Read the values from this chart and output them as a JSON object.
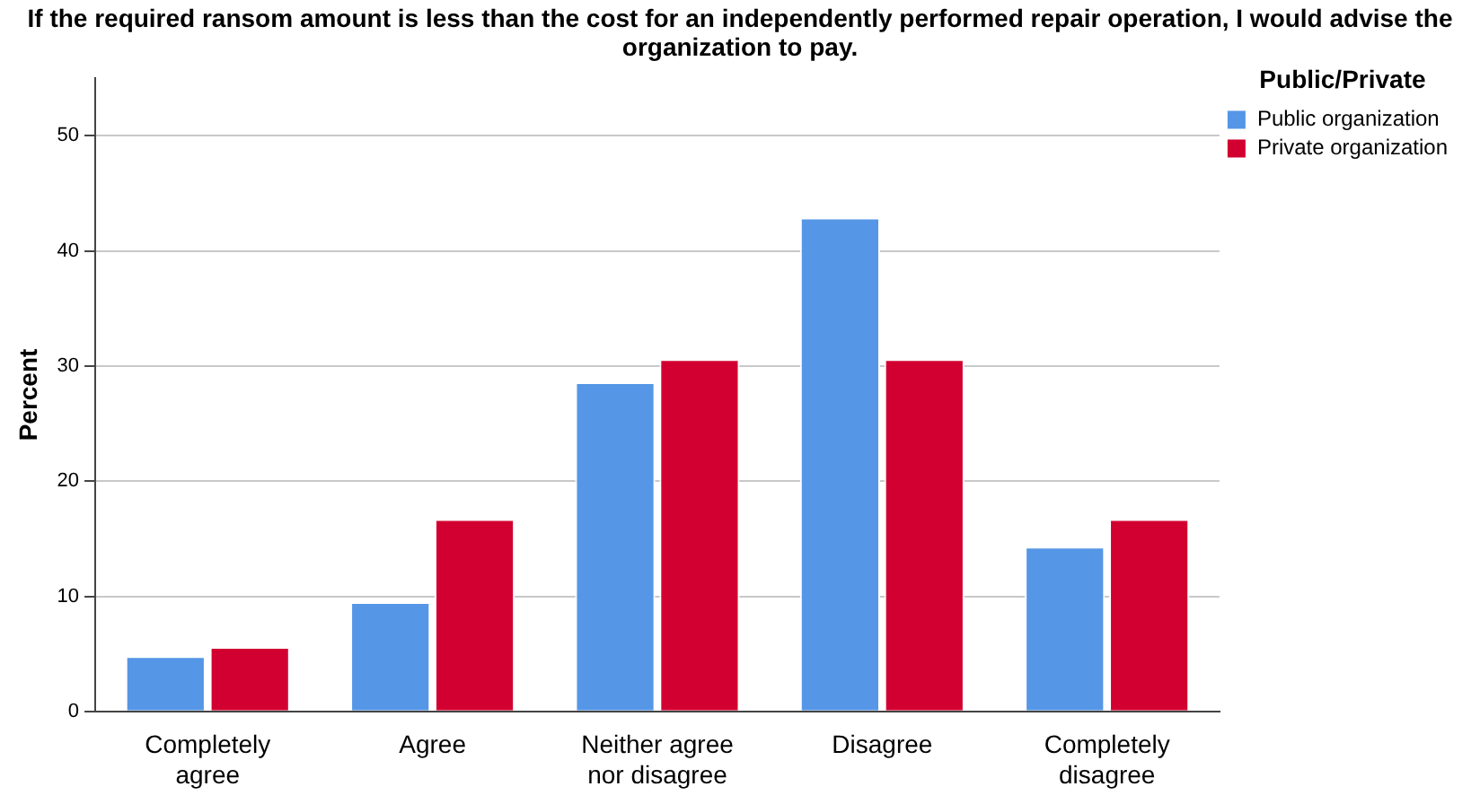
{
  "chart_data": {
    "type": "bar",
    "title": "If the required ransom amount is less than the cost for an independently performed repair operation, I would advise the organization to pay.",
    "ylabel": "Percent",
    "legend_title": "Public/Private",
    "categories": [
      "Completely agree",
      "Agree",
      "Neither agree nor disagree",
      "Disagree",
      "Completely disagree"
    ],
    "series": [
      {
        "name": "Public organization",
        "color": "#5596e6",
        "values": [
          4.8,
          9.5,
          28.6,
          42.9,
          14.3
        ]
      },
      {
        "name": "Private organization",
        "color": "#d20030",
        "values": [
          5.6,
          16.7,
          30.6,
          30.6,
          16.7
        ]
      }
    ],
    "ylim": [
      0,
      55
    ],
    "yticks": [
      0,
      10,
      20,
      30,
      40,
      50
    ],
    "grid": "y",
    "legend": "top right"
  }
}
